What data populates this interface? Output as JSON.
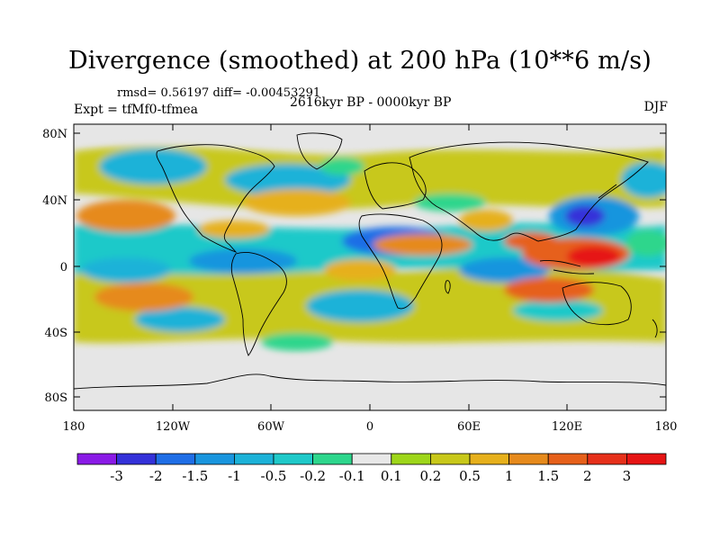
{
  "title": "Divergence (smoothed) at 200 hPa (10**6 m/s)",
  "stats": "rmsd= 0.56197 diff= -0.00453291",
  "experiment": "Expt = tfMf0-tfmea",
  "period": "2616kyr BP - 0000kyr BP",
  "season": "DJF",
  "lat_labels": [
    "80N",
    "40N",
    "0",
    "40S",
    "80S"
  ],
  "lon_labels": [
    "180",
    "120W",
    "60W",
    "0",
    "60E",
    "120E",
    "180"
  ],
  "colorbar": {
    "labels": [
      "-3",
      "-2",
      "-1.5",
      "-1",
      "-0.5",
      "-0.2",
      "-0.1",
      "0.1",
      "0.2",
      "0.5",
      "1",
      "1.5",
      "2",
      "3"
    ],
    "colors": [
      "#8a1ae6",
      "#3431d9",
      "#1f6ee6",
      "#1995de",
      "#1cb2d8",
      "#1fc9c9",
      "#2dd68c",
      "#e8e8e8",
      "#9ed61a",
      "#c8c81a",
      "#e6b01c",
      "#e68a1c",
      "#e6601a",
      "#e6301a",
      "#e61414"
    ]
  }
}
